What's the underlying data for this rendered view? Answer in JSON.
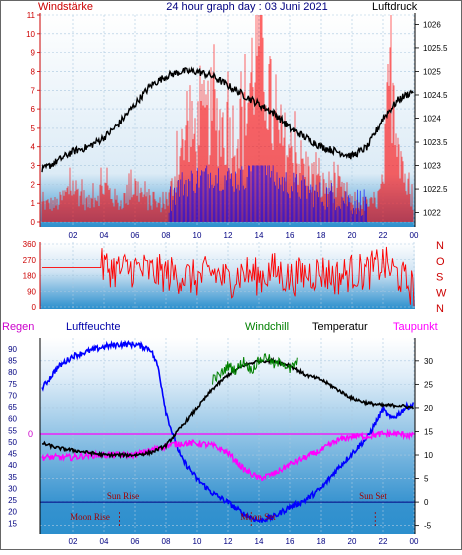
{
  "header": {
    "left_label": "Windstärke",
    "title": "24 hour graph day : 03 Juni 2021",
    "right_label": "Luftdruck"
  },
  "colors": {
    "wind": "#ff0000",
    "gust": "#0000ff",
    "pressure": "#000000",
    "humidity": "#0000ff",
    "windchill": "#008000",
    "temperature": "#000000",
    "dewpoint": "#ff00ff",
    "sun": "#000080",
    "moon": "#a00000",
    "axis_text": "#000080",
    "wind_axis_text": "#cc0000"
  },
  "legend_bottom": {
    "regen": "Regen",
    "luftfeuchte": "Luftfeuchte",
    "windchill": "Windchill",
    "temperatur": "Temperatur",
    "taupunkt": "Taupunkt"
  },
  "rain_zero_label": "0",
  "annotations": {
    "sun_rise": "Sun Rise",
    "sun_set": "Sun Set",
    "moon_rise": "Moon Rise",
    "moon_set": "Moon Set"
  },
  "chart_data": [
    {
      "type": "bar",
      "title": "24 hour graph day : 03 Juni 2021",
      "x_ticks": [
        "02",
        "04",
        "06",
        "08",
        "10",
        "12",
        "14",
        "16",
        "18",
        "20",
        "22",
        "00"
      ],
      "y_left_label": "Windstärke",
      "y_left_ticks": [
        0,
        1,
        2,
        3,
        4,
        5,
        6,
        7,
        8,
        9,
        10,
        11
      ],
      "ylim_left": [
        0,
        11
      ],
      "y_right_label": "Luftdruck",
      "y_right_ticks": [
        1022,
        1022.5,
        1023,
        1023.5,
        1024,
        1024.5,
        1025,
        1025.5,
        1026
      ],
      "ylim_right": [
        1021.8,
        1026.2
      ],
      "series": [
        {
          "name": "Windstärke",
          "x": [
            0,
            1,
            2,
            3,
            4,
            5,
            6,
            7,
            7.9,
            8.1,
            9,
            10,
            11,
            12,
            13,
            14,
            15,
            16,
            17,
            18,
            19,
            20,
            21,
            21.5,
            22,
            22.5,
            23,
            23.5,
            24
          ],
          "values": [
            1,
            1,
            2,
            1,
            2,
            1,
            2,
            1,
            1,
            1,
            4,
            5,
            6,
            5,
            5,
            11,
            5,
            4,
            3,
            2,
            2,
            1,
            1,
            1,
            2,
            9,
            5,
            2,
            1
          ]
        },
        {
          "name": "Luftdruck",
          "x": [
            0,
            1,
            2,
            3,
            4,
            5,
            6,
            7,
            8,
            9,
            10,
            11,
            12,
            13,
            14,
            15,
            16,
            17,
            18,
            19,
            20,
            21,
            22,
            23,
            24
          ],
          "values": [
            1022.9,
            1023.1,
            1023.3,
            1023.4,
            1023.6,
            1023.9,
            1024.3,
            1024.7,
            1024.9,
            1025.0,
            1025.0,
            1024.9,
            1024.7,
            1024.5,
            1024.3,
            1024.1,
            1023.8,
            1023.6,
            1023.4,
            1023.3,
            1023.2,
            1023.4,
            1024.0,
            1024.4,
            1024.6
          ]
        }
      ],
      "grid": true
    },
    {
      "type": "line",
      "title": "",
      "x_ticks": [],
      "y_ticks": [
        0,
        90,
        180,
        270,
        360
      ],
      "ylim": [
        0,
        360
      ],
      "y_right_labels": [
        "N",
        "W",
        "S",
        "O",
        "N"
      ],
      "series": [
        {
          "name": "",
          "x": [
            0,
            1,
            2,
            3,
            4,
            5,
            6,
            7,
            8,
            9,
            10,
            11,
            12,
            13,
            14,
            15,
            16,
            17,
            18,
            19,
            20,
            21,
            22,
            23,
            24
          ],
          "values": [
            225,
            225,
            240,
            200,
            230,
            210,
            220,
            200,
            190,
            180,
            160,
            200,
            150,
            200,
            170,
            210,
            160,
            190,
            200,
            170,
            200,
            200,
            250,
            180,
            100
          ]
        }
      ],
      "grid": true
    },
    {
      "type": "line",
      "title": "",
      "x_ticks": [
        "02",
        "04",
        "06",
        "08",
        "10",
        "12",
        "14",
        "16",
        "18",
        "20",
        "22",
        "00"
      ],
      "y_left_ticks": [
        15,
        20,
        25,
        30,
        35,
        40,
        45,
        50,
        55,
        60,
        65,
        70,
        75,
        80,
        85,
        90
      ],
      "ylim_left": [
        13,
        93
      ],
      "y_right_ticks": [
        -5,
        0,
        5,
        10,
        15,
        20,
        25,
        30
      ],
      "ylim_right": [
        -5.5,
        34
      ],
      "series": [
        {
          "name": "Luftfeuchte",
          "x": [
            0,
            1,
            2,
            3,
            4,
            5,
            6,
            7,
            7.5,
            8,
            8.5,
            9,
            10,
            11,
            12,
            13,
            14,
            15,
            16,
            17,
            18,
            19,
            20,
            21,
            21.5,
            22,
            22.5,
            23,
            23.5,
            24
          ],
          "values": [
            73,
            82,
            87,
            89,
            91,
            92,
            92,
            90,
            82,
            63,
            52,
            43,
            34,
            28,
            24,
            19,
            16,
            18,
            22,
            25,
            30,
            38,
            45,
            52,
            58,
            64,
            60,
            62,
            65,
            66
          ]
        },
        {
          "name": "Windchill",
          "x": [
            11,
            11.5,
            12,
            12.5,
            13,
            13.5,
            14,
            14.5,
            15,
            15.5,
            16,
            16.5
          ],
          "values": [
            26,
            27,
            29,
            28,
            30,
            28,
            30,
            31,
            29,
            30,
            28,
            30
          ]
        },
        {
          "name": "Temperatur",
          "x": [
            0,
            1,
            2,
            3,
            4,
            5,
            6,
            7,
            8,
            9,
            10,
            11,
            12,
            13,
            14,
            15,
            16,
            17,
            18,
            19,
            20,
            21,
            22,
            23,
            24
          ],
          "values": [
            12.5,
            11.5,
            11.0,
            10.5,
            10.0,
            10.0,
            10.0,
            10.5,
            12,
            16,
            20,
            24,
            27,
            29,
            30,
            30,
            29,
            27,
            26,
            24,
            22,
            21,
            20.5,
            20.5,
            20
          ]
        },
        {
          "name": "Taupunkt",
          "x": [
            0,
            1,
            2,
            3,
            4,
            5,
            6,
            7,
            8,
            9,
            10,
            11,
            12,
            13,
            14,
            15,
            16,
            17,
            18,
            19,
            20,
            21,
            22,
            23,
            24
          ],
          "values": [
            9.5,
            9.5,
            9.5,
            10,
            10,
            10,
            10,
            11,
            12,
            12.5,
            12.5,
            12,
            10.5,
            7,
            5,
            6,
            8,
            9.5,
            11,
            13,
            14,
            14,
            14.5,
            14.5,
            14
          ]
        }
      ],
      "rain_line": 0,
      "sun_level": 0,
      "sun_rise_hour": 5,
      "sun_set_hour": 21.5,
      "moon_rise_hour": 5,
      "moon_set_hour": 13.5,
      "grid": true
    }
  ]
}
